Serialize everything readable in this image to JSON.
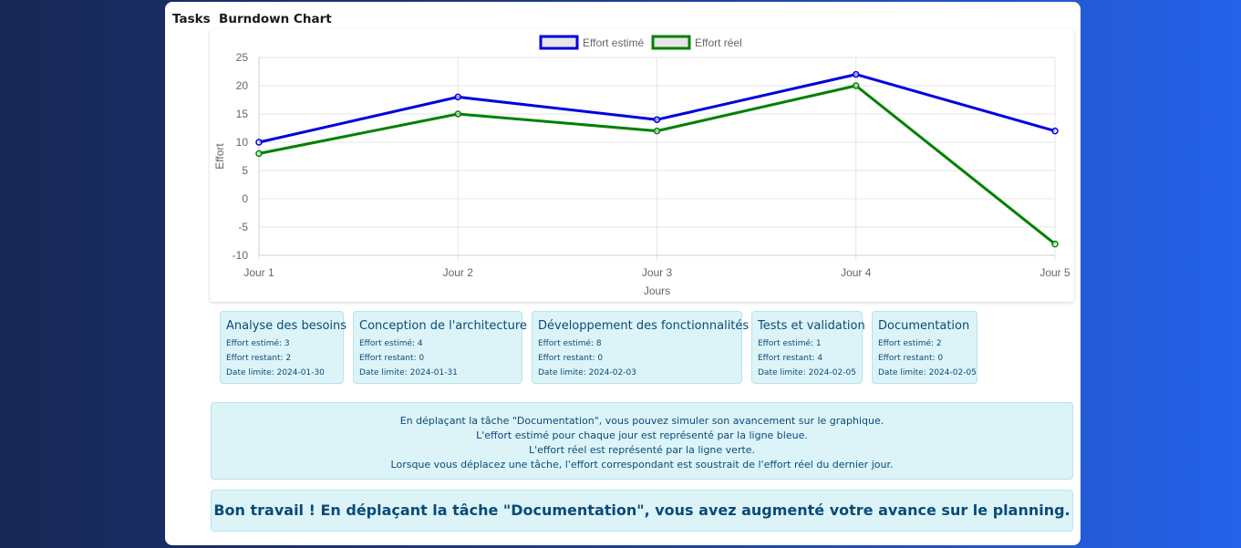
{
  "header": {
    "prefix": "Tasks",
    "title": "Burndown Chart"
  },
  "chart_data": {
    "type": "line",
    "categories": [
      "Jour 1",
      "Jour 2",
      "Jour 3",
      "Jour 4",
      "Jour 5"
    ],
    "series": [
      {
        "name": "Effort estimé",
        "values": [
          10,
          18,
          14,
          22,
          12
        ],
        "color": "#0000dd"
      },
      {
        "name": "Effort réel",
        "values": [
          8,
          15,
          12,
          20,
          -8
        ],
        "color": "#008000"
      }
    ],
    "xlabel": "Jours",
    "ylabel": "Effort",
    "ylim": [
      -10,
      25
    ],
    "yticks": [
      "25",
      "20",
      "15",
      "10",
      "5",
      "0",
      "-5",
      "-10"
    ],
    "grid": true,
    "legend_position": "top"
  },
  "tasks": [
    {
      "name": "Analyse des besoins",
      "estimated": "Effort estimé: 3",
      "remaining": "Effort restant: 2",
      "deadline": "Date limite: 2024-01-30"
    },
    {
      "name": "Conception de l'architecture",
      "estimated": "Effort estimé: 4",
      "remaining": "Effort restant: 0",
      "deadline": "Date limite: 2024-01-31"
    },
    {
      "name": "Développement des fonctionnalités",
      "estimated": "Effort estimé: 8",
      "remaining": "Effort restant: 0",
      "deadline": "Date limite: 2024-02-03"
    },
    {
      "name": "Tests et validation",
      "estimated": "Effort estimé: 1",
      "remaining": "Effort restant: 4",
      "deadline": "Date limite: 2024-02-05"
    },
    {
      "name": "Documentation",
      "estimated": "Effort estimé: 2",
      "remaining": "Effort restant: 0",
      "deadline": "Date limite: 2024-02-05"
    }
  ],
  "info": {
    "line1": "En déplaçant la tâche \"Documentation\", vous pouvez simuler son avancement sur le graphique.",
    "line2": "L'effort estimé pour chaque jour est représenté par la ligne bleue.",
    "line3": "L'effort réel est représenté par la ligne verte.",
    "line4": "Lorsque vous déplacez une tâche, l'effort correspondant est soustrait de l'effort réel du dernier jour."
  },
  "success_message": "Bon travail ! En déplaçant la tâche \"Documentation\", vous avez augmenté votre avance sur le planning."
}
